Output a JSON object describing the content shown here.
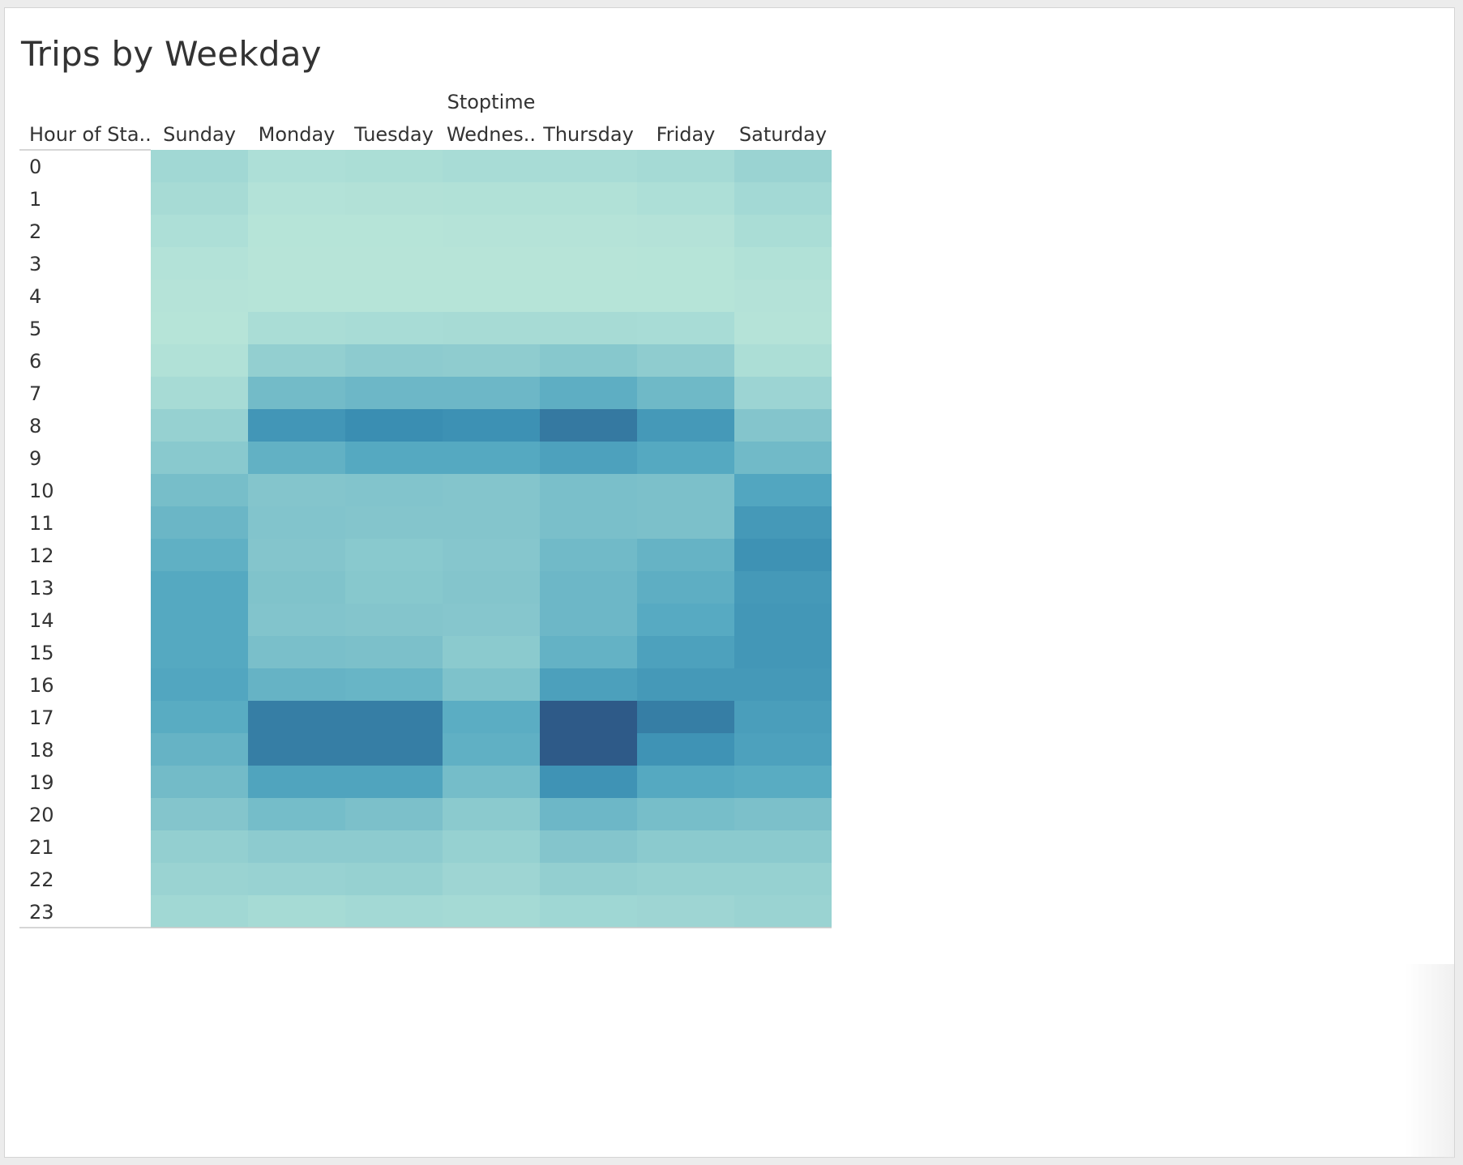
{
  "title": "Trips by Weekday",
  "chart_data": {
    "type": "heatmap",
    "title": "Trips by Weekday",
    "column_axis_title": "Stoptime",
    "row_axis_title": "Hour of Sta..",
    "columns": [
      "Sunday",
      "Monday",
      "Tuesday",
      "Wednes..",
      "Thursday",
      "Friday",
      "Saturday"
    ],
    "rows": [
      "0",
      "1",
      "2",
      "3",
      "4",
      "5",
      "6",
      "7",
      "8",
      "9",
      "10",
      "11",
      "12",
      "13",
      "14",
      "15",
      "16",
      "17",
      "18",
      "19",
      "20",
      "21",
      "22",
      "23"
    ],
    "values": [
      [
        0.22,
        0.12,
        0.14,
        0.17,
        0.17,
        0.2,
        0.26
      ],
      [
        0.18,
        0.07,
        0.08,
        0.09,
        0.09,
        0.12,
        0.21
      ],
      [
        0.12,
        0.04,
        0.04,
        0.05,
        0.05,
        0.06,
        0.15
      ],
      [
        0.07,
        0.03,
        0.03,
        0.03,
        0.03,
        0.04,
        0.09
      ],
      [
        0.05,
        0.04,
        0.04,
        0.04,
        0.04,
        0.04,
        0.06
      ],
      [
        0.04,
        0.15,
        0.17,
        0.18,
        0.18,
        0.17,
        0.05
      ],
      [
        0.09,
        0.3,
        0.33,
        0.32,
        0.36,
        0.32,
        0.13
      ],
      [
        0.18,
        0.46,
        0.49,
        0.49,
        0.56,
        0.48,
        0.25
      ],
      [
        0.28,
        0.74,
        0.8,
        0.78,
        0.88,
        0.72,
        0.38
      ],
      [
        0.35,
        0.54,
        0.6,
        0.6,
        0.66,
        0.6,
        0.47
      ],
      [
        0.44,
        0.38,
        0.39,
        0.38,
        0.43,
        0.42,
        0.62
      ],
      [
        0.5,
        0.39,
        0.38,
        0.38,
        0.43,
        0.42,
        0.72
      ],
      [
        0.55,
        0.38,
        0.35,
        0.37,
        0.47,
        0.52,
        0.77
      ],
      [
        0.6,
        0.4,
        0.36,
        0.38,
        0.49,
        0.56,
        0.72
      ],
      [
        0.6,
        0.39,
        0.38,
        0.37,
        0.49,
        0.59,
        0.73
      ],
      [
        0.6,
        0.43,
        0.42,
        0.34,
        0.53,
        0.66,
        0.73
      ],
      [
        0.62,
        0.52,
        0.51,
        0.41,
        0.67,
        0.72,
        0.72
      ],
      [
        0.58,
        0.86,
        0.86,
        0.57,
        1.0,
        0.86,
        0.68
      ],
      [
        0.52,
        0.86,
        0.86,
        0.55,
        1.0,
        0.76,
        0.66
      ],
      [
        0.46,
        0.64,
        0.64,
        0.45,
        0.76,
        0.6,
        0.58
      ],
      [
        0.38,
        0.45,
        0.42,
        0.34,
        0.49,
        0.44,
        0.42
      ],
      [
        0.3,
        0.33,
        0.33,
        0.28,
        0.38,
        0.34,
        0.34
      ],
      [
        0.26,
        0.27,
        0.28,
        0.24,
        0.3,
        0.28,
        0.28
      ],
      [
        0.22,
        0.19,
        0.21,
        0.2,
        0.23,
        0.24,
        0.26
      ]
    ],
    "color_scale": [
      "#bae6d9",
      "#a5dad5",
      "#80c3cb",
      "#55a9c1",
      "#3a8eb2",
      "#2e5a88"
    ],
    "legend": "none"
  }
}
